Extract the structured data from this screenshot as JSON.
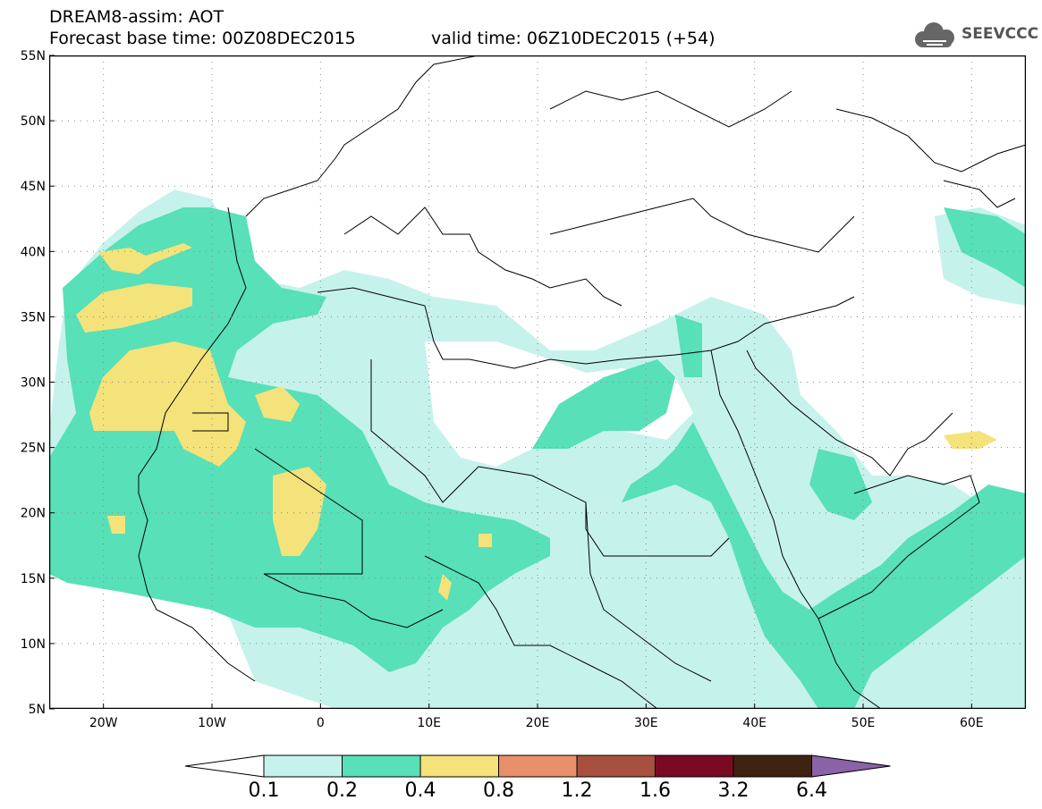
{
  "title": {
    "line1": "DREAM8-assim: AOT",
    "base_time": "Forecast base time: 00Z08DEC2015",
    "valid_time": "valid time: 06Z10DEC2015 (+54)"
  },
  "logo": {
    "text": "SEEVCCC",
    "icon": "cloud-icon"
  },
  "map": {
    "lat_labels": [
      "55N",
      "50N",
      "45N",
      "40N",
      "35N",
      "30N",
      "25N",
      "20N",
      "15N",
      "10N",
      "5N"
    ],
    "lon_labels": [
      "20W",
      "10W",
      "0",
      "10E",
      "20E",
      "30E",
      "40E",
      "50E",
      "60E"
    ],
    "lat_range": [
      5,
      55
    ],
    "lon_range": [
      -25,
      65
    ],
    "grid": "dotted",
    "field": "AOT"
  },
  "legend": {
    "labels": [
      "0.1",
      "0.2",
      "0.4",
      "0.8",
      "1.2",
      "1.6",
      "3.2",
      "6.4"
    ],
    "colors": [
      "#ffffff",
      "#c6f2ec",
      "#58e0b8",
      "#f4e27a",
      "#e8906a",
      "#a8503e",
      "#7a0a24",
      "#3e2410",
      "#8a62a8"
    ],
    "placement": "bottom"
  }
}
